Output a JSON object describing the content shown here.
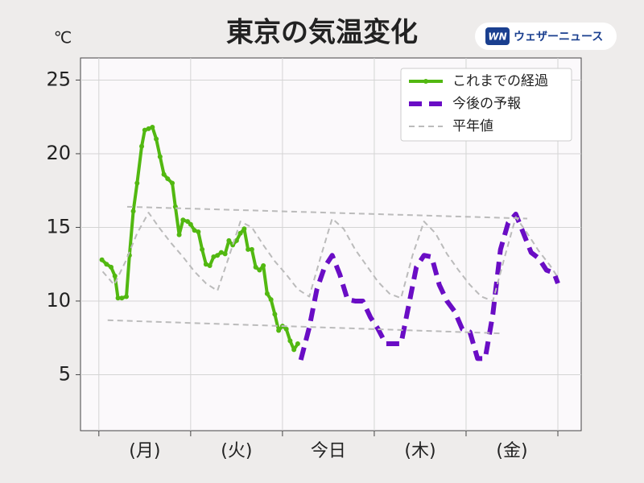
{
  "chart_data": {
    "type": "line",
    "title": "東京の気温変化",
    "ylabel": "℃",
    "brand": "ウェザーニュース",
    "brand_mark": "WN",
    "xlim": [
      -4.8,
      126.1
    ],
    "ylim": [
      1.2,
      26.5
    ],
    "yticks": [
      5,
      10,
      15,
      20,
      25
    ],
    "xticks": [
      {
        "value": 12,
        "label": "(月)"
      },
      {
        "value": 36,
        "label": "(火)"
      },
      {
        "value": 60,
        "label": "今日"
      },
      {
        "value": 84,
        "label": "(木)"
      },
      {
        "value": 108,
        "label": "(金)"
      }
    ],
    "xgrid": [
      0,
      24,
      48,
      72,
      96,
      120
    ],
    "grid": true,
    "legend": "upper right",
    "series": [
      {
        "name": "これまでの経過",
        "color": "#52b811",
        "style": "solid-markers",
        "x": [
          0.8,
          2,
          3.2,
          4.2,
          5,
          6,
          7.2,
          8,
          9,
          10,
          11.2,
          12,
          13,
          14,
          15,
          16,
          17,
          18,
          19.2,
          20,
          21,
          22,
          23.2,
          24,
          25,
          26,
          27,
          28,
          29,
          30,
          31,
          32,
          33,
          34,
          35,
          36,
          37,
          38,
          39,
          40,
          41,
          42,
          43,
          44,
          45,
          46,
          47,
          48,
          49,
          50,
          51,
          52
        ],
        "values": [
          12.8,
          12.5,
          12.3,
          11.7,
          10.2,
          10.2,
          10.3,
          13.1,
          16.1,
          18.0,
          20.5,
          21.6,
          21.7,
          21.8,
          21.0,
          19.8,
          18.6,
          18.3,
          18.0,
          16.4,
          14.5,
          15.5,
          15.4,
          15.2,
          14.8,
          14.7,
          13.5,
          12.5,
          12.4,
          13.0,
          13.1,
          13.3,
          13.2,
          14.1,
          13.8,
          14.1,
          14.6,
          14.9,
          13.5,
          13.5,
          12.3,
          12.1,
          12.4,
          10.5,
          10.1,
          9.1,
          8.0,
          8.3,
          8.1,
          7.3,
          6.7,
          7.1
        ]
      },
      {
        "name": "今後の予報",
        "color": "#6a0dc5",
        "style": "dashed-bold",
        "x": [
          52.8,
          55,
          57,
          59,
          61,
          63,
          65,
          67,
          69,
          71,
          73,
          75,
          77,
          79,
          81,
          83,
          85,
          87,
          89,
          91,
          93,
          95,
          97,
          99,
          101,
          103,
          105,
          107,
          109,
          111,
          113,
          115,
          117,
          119,
          120
        ],
        "values": [
          6.0,
          8.2,
          10.8,
          12.3,
          13.1,
          11.8,
          10.1,
          10.0,
          10.0,
          8.9,
          8.1,
          7.1,
          7.1,
          7.1,
          9.7,
          12.3,
          13.1,
          13.0,
          11.1,
          10.0,
          9.3,
          8.1,
          7.9,
          6.1,
          6.1,
          9.1,
          13.5,
          15.3,
          15.9,
          14.6,
          13.3,
          12.9,
          12.1,
          11.9,
          11.2
        ]
      },
      {
        "name": "平年値",
        "color": "#bbbbbb",
        "style": "dashed-thin",
        "x": [
          1,
          4,
          7,
          10,
          13,
          16,
          19,
          22,
          25,
          28,
          31,
          34,
          37,
          40,
          43,
          46,
          49,
          52,
          55,
          58,
          61,
          64,
          67,
          70,
          73,
          76,
          79,
          82,
          85,
          88,
          91,
          94,
          97,
          100,
          103,
          106,
          109,
          112,
          115,
          118,
          120,
          null,
          7.4,
          112,
          null,
          2.3,
          105.7
        ],
        "values": [
          12.0,
          11.1,
          12.7,
          14.6,
          16.0,
          14.9,
          13.9,
          13.0,
          12.0,
          11.2,
          10.7,
          13.0,
          15.4,
          15.0,
          13.8,
          12.7,
          11.8,
          10.8,
          10.3,
          13.0,
          15.6,
          14.9,
          13.5,
          12.4,
          11.3,
          10.5,
          10.2,
          13.1,
          15.4,
          14.6,
          13.2,
          12.1,
          11.1,
          10.3,
          10.0,
          12.9,
          15.7,
          14.6,
          13.4,
          12.4,
          11.6,
          null,
          16.4,
          15.6,
          null,
          8.7,
          7.8
        ]
      }
    ]
  }
}
